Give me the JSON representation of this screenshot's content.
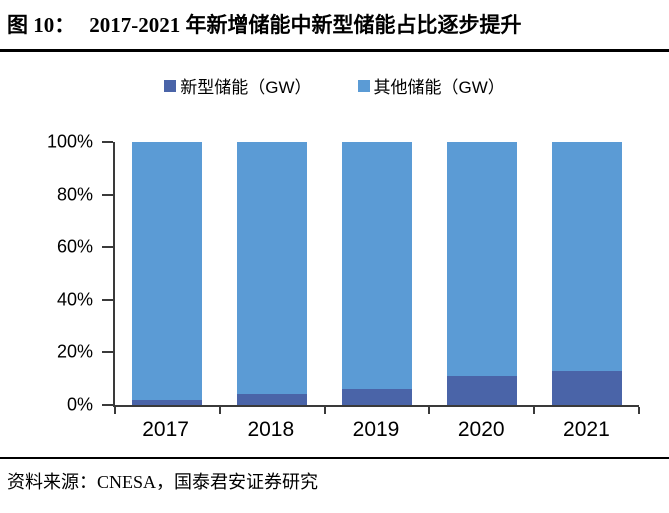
{
  "header": {
    "figure_label": "图 10：",
    "title": "2017-2021 年新增储能中新型储能占比逐步提升"
  },
  "footer": {
    "source": "资料来源：CNESA，国泰君安证券研究"
  },
  "colors": {
    "new_type_storage": "#4A64A8",
    "other_storage": "#5B9BD5",
    "axis": "#3a3a3a",
    "text": "#000000",
    "rule": "#000000"
  },
  "chart_data": {
    "type": "bar",
    "subtype": "stacked-100-percent",
    "title": "2017-2021 年新增储能中新型储能占比逐步提升",
    "categories": [
      "2017",
      "2018",
      "2019",
      "2020",
      "2021"
    ],
    "series": [
      {
        "name": "新型储能（GW）",
        "color": "#4A64A8",
        "values": [
          2,
          4,
          6,
          11,
          13
        ]
      },
      {
        "name": "其他储能（GW）",
        "color": "#5B9BD5",
        "values": [
          98,
          96,
          94,
          89,
          87
        ]
      }
    ],
    "xlabel": "",
    "ylabel": "",
    "ylim": [
      0,
      100
    ],
    "yticks": [
      "0%",
      "20%",
      "40%",
      "60%",
      "80%",
      "100%"
    ],
    "grid": false,
    "legend_position": "top"
  }
}
